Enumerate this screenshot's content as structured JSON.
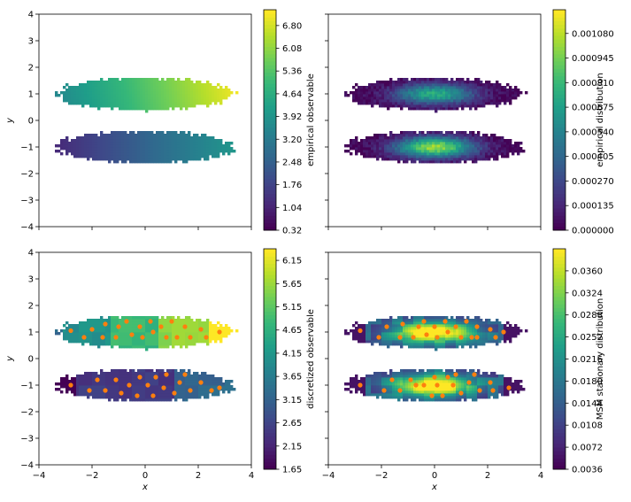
{
  "chart_data": [
    {
      "type": "heatmap",
      "panel": "top-left",
      "xlabel": "",
      "ylabel": "y",
      "xlim": [
        -4,
        4
      ],
      "ylim": [
        -4,
        4
      ],
      "x_ticks": [
        "",
        "",
        "",
        "",
        ""
      ],
      "y_ticks": [
        "4",
        "3",
        "2",
        "1",
        "0",
        "−1",
        "−2",
        "−3",
        "−4"
      ],
      "colormap": "viridis",
      "colorbar": {
        "label": "empirical observable",
        "ticks": [
          "6.80",
          "6.08",
          "5.36",
          "4.64",
          "3.92",
          "3.20",
          "2.48",
          "1.76",
          "1.04",
          "0.32"
        ],
        "range": [
          0.32,
          7.3
        ]
      },
      "colored_by": "x"
    },
    {
      "type": "heatmap",
      "panel": "top-right",
      "xlabel": "",
      "ylabel": "",
      "xlim": [
        -4,
        4
      ],
      "ylim": [
        -4,
        4
      ],
      "colormap": "viridis",
      "colorbar": {
        "label": "empirical distribution",
        "ticks": [
          "0.001080",
          "0.000945",
          "0.000810",
          "0.000675",
          "0.000540",
          "0.000405",
          "0.000270",
          "0.000135",
          "0.000000"
        ],
        "range": [
          0,
          0.00121
        ]
      },
      "colored_by": "density"
    },
    {
      "type": "heatmap",
      "panel": "bottom-left",
      "xlabel": "x",
      "ylabel": "y",
      "xlim": [
        -4,
        4
      ],
      "ylim": [
        -4,
        4
      ],
      "x_ticks": [
        "−4",
        "−2",
        "0",
        "2",
        "4"
      ],
      "y_ticks": [
        "4",
        "3",
        "2",
        "1",
        "0",
        "−1",
        "−2",
        "−3",
        "−4"
      ],
      "colormap": "viridis",
      "colorbar": {
        "label": "discretized observable",
        "ticks": [
          "6.15",
          "5.65",
          "5.15",
          "4.65",
          "4.15",
          "3.65",
          "3.15",
          "2.65",
          "2.15",
          "1.65"
        ],
        "range": [
          1.65,
          6.4
        ]
      },
      "colored_by": "x",
      "cluster_centers": [
        [
          -2.8,
          1.05
        ],
        [
          -2.3,
          0.8
        ],
        [
          -2.0,
          1.1
        ],
        [
          -1.6,
          0.8
        ],
        [
          -1.5,
          1.3
        ],
        [
          -1.1,
          0.8
        ],
        [
          -1.0,
          1.2
        ],
        [
          -0.5,
          0.9
        ],
        [
          -0.7,
          1.4
        ],
        [
          -0.2,
          1.2
        ],
        [
          -0.1,
          0.8
        ],
        [
          0.2,
          1.4
        ],
        [
          0.3,
          1.0
        ],
        [
          0.6,
          1.2
        ],
        [
          0.8,
          0.8
        ],
        [
          1.0,
          1.4
        ],
        [
          1.2,
          0.8
        ],
        [
          1.5,
          1.2
        ],
        [
          1.7,
          0.8
        ],
        [
          2.1,
          1.1
        ],
        [
          2.3,
          0.8
        ],
        [
          2.8,
          1.0
        ],
        [
          -2.8,
          -1.0
        ],
        [
          -2.1,
          -1.2
        ],
        [
          -1.8,
          -0.8
        ],
        [
          -1.5,
          -1.2
        ],
        [
          -1.1,
          -0.8
        ],
        [
          -0.9,
          -1.3
        ],
        [
          -0.6,
          -1.0
        ],
        [
          -0.3,
          -1.4
        ],
        [
          -0.2,
          -0.7
        ],
        [
          0.1,
          -1.0
        ],
        [
          0.3,
          -1.4
        ],
        [
          0.4,
          -0.7
        ],
        [
          0.7,
          -1.1
        ],
        [
          0.8,
          -0.6
        ],
        [
          1.1,
          -1.3
        ],
        [
          1.3,
          -0.9
        ],
        [
          1.5,
          -0.6
        ],
        [
          1.7,
          -1.2
        ],
        [
          2.1,
          -0.9
        ],
        [
          2.5,
          -1.2
        ],
        [
          2.8,
          -1.1
        ]
      ]
    },
    {
      "type": "heatmap",
      "panel": "bottom-right",
      "xlabel": "x",
      "ylabel": "",
      "xlim": [
        -4,
        4
      ],
      "ylim": [
        -4,
        4
      ],
      "x_ticks": [
        "−4",
        "−2",
        "0",
        "2",
        "4"
      ],
      "colormap": "viridis",
      "colorbar": {
        "label": "MSM stationary distribution",
        "ticks": [
          "0.0360",
          "0.0324",
          "0.0288",
          "0.0252",
          "0.0216",
          "0.0180",
          "0.0144",
          "0.0108",
          "0.0072",
          "0.0036"
        ],
        "range": [
          0.0036,
          0.0396
        ]
      },
      "colored_by": "density",
      "cluster_centers": [
        [
          -2.8,
          1.05
        ],
        [
          -2.1,
          0.8
        ],
        [
          -1.8,
          1.2
        ],
        [
          -1.3,
          0.8
        ],
        [
          -1.2,
          1.3
        ],
        [
          -0.8,
          0.8
        ],
        [
          -0.6,
          1.2
        ],
        [
          -0.3,
          0.9
        ],
        [
          -0.4,
          1.4
        ],
        [
          0.0,
          1.2
        ],
        [
          0.1,
          0.8
        ],
        [
          0.4,
          1.4
        ],
        [
          0.5,
          1.0
        ],
        [
          0.8,
          1.2
        ],
        [
          1.0,
          0.8
        ],
        [
          1.2,
          1.4
        ],
        [
          1.4,
          0.8
        ],
        [
          1.6,
          1.2
        ],
        [
          1.6,
          0.8
        ],
        [
          2.1,
          1.1
        ],
        [
          2.3,
          0.8
        ],
        [
          2.6,
          1.0
        ],
        [
          -2.8,
          -1.0
        ],
        [
          -1.9,
          -1.2
        ],
        [
          -1.6,
          -0.8
        ],
        [
          -1.3,
          -1.2
        ],
        [
          -0.9,
          -0.8
        ],
        [
          -0.7,
          -1.0
        ],
        [
          -0.4,
          -1.0
        ],
        [
          -0.1,
          -1.4
        ],
        [
          0.0,
          -0.7
        ],
        [
          0.1,
          -1.0
        ],
        [
          0.3,
          -1.4
        ],
        [
          0.5,
          -0.7
        ],
        [
          0.7,
          -1.0
        ],
        [
          0.8,
          -0.6
        ],
        [
          1.0,
          -1.3
        ],
        [
          1.3,
          -0.9
        ],
        [
          1.5,
          -0.6
        ],
        [
          1.7,
          -1.2
        ],
        [
          2.1,
          -0.9
        ],
        [
          2.2,
          -1.2
        ],
        [
          2.8,
          -1.1
        ]
      ]
    }
  ]
}
